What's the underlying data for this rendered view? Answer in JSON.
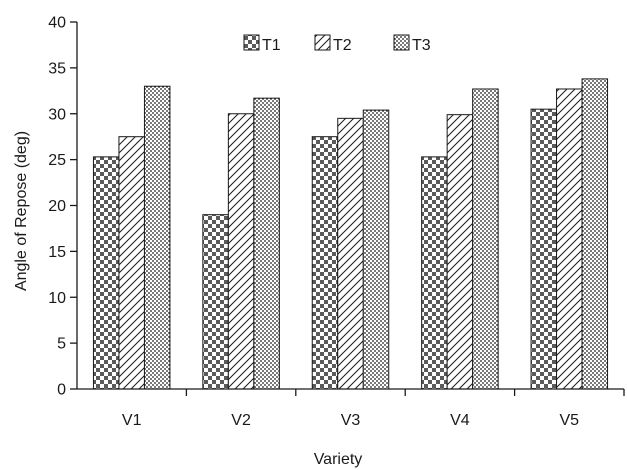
{
  "chart_data": {
    "type": "bar",
    "categories": [
      "V1",
      "V2",
      "V3",
      "V4",
      "V5"
    ],
    "series": [
      {
        "name": "T1",
        "pattern": "checker",
        "values": [
          25.3,
          19.0,
          27.5,
          25.3,
          30.5
        ]
      },
      {
        "name": "T2",
        "pattern": "hatch",
        "values": [
          27.5,
          30.0,
          29.5,
          29.9,
          32.7
        ]
      },
      {
        "name": "T3",
        "pattern": "dots",
        "values": [
          33.0,
          31.7,
          30.4,
          32.7,
          33.8
        ]
      }
    ],
    "xlabel": "Variety",
    "ylabel": "Angle of Repose (deg)",
    "ylim": [
      0,
      40
    ],
    "yticks": [
      "0",
      "5",
      "10",
      "15",
      "20",
      "25",
      "30",
      "35",
      "40"
    ],
    "grid": false,
    "legend_position": "top-center",
    "colors": {
      "ink": "#1a1a1a",
      "background": "#ffffff"
    }
  }
}
